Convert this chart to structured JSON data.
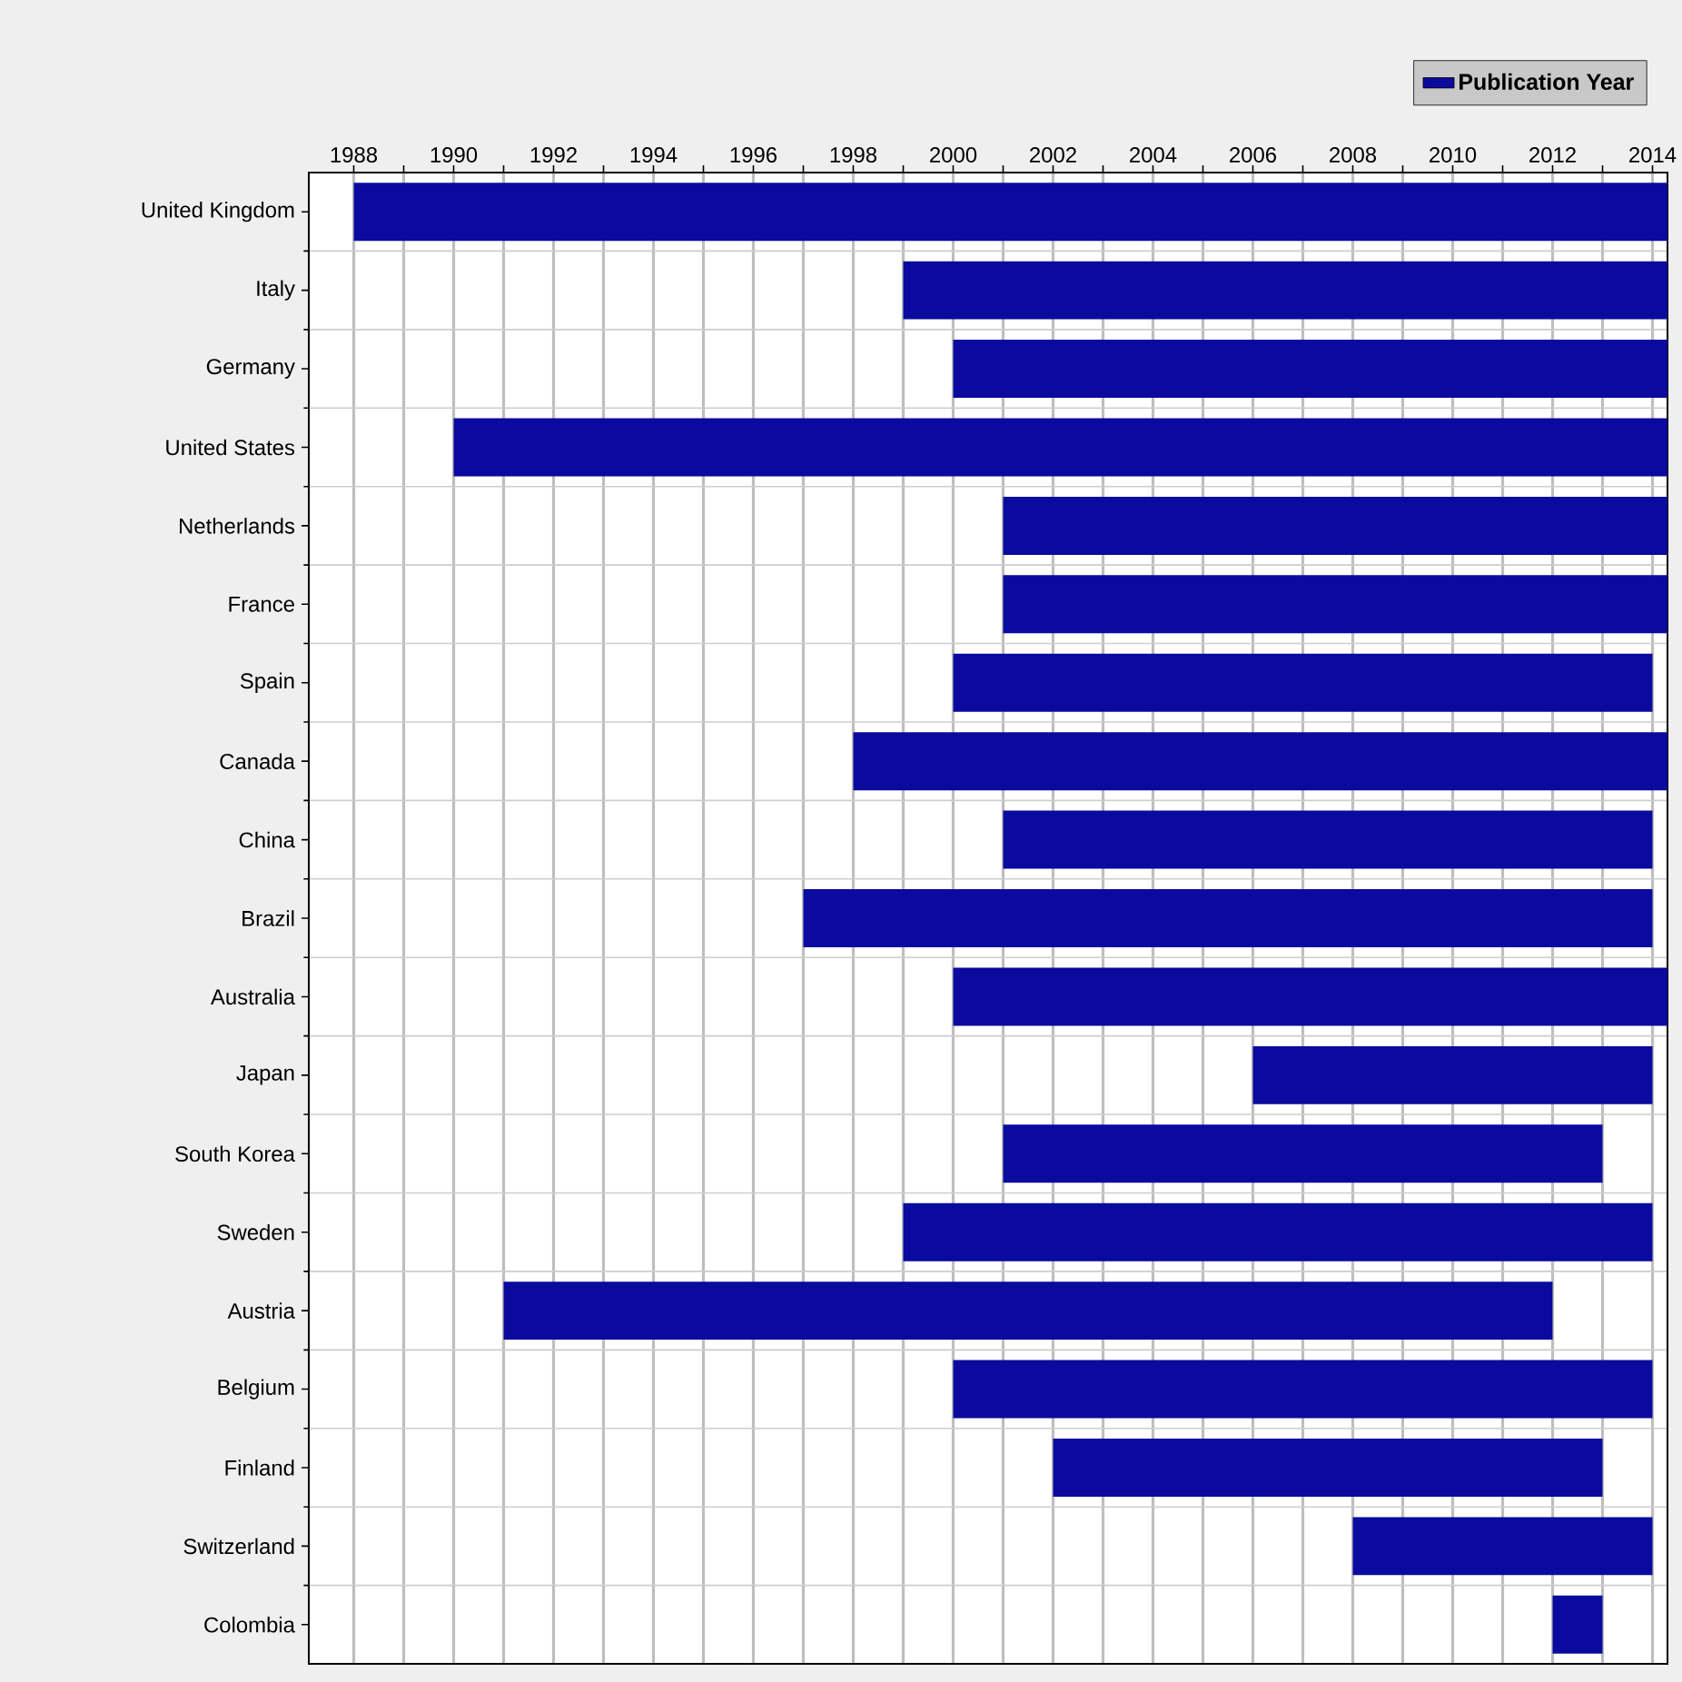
{
  "chart_data": {
    "type": "bar",
    "orientation": "horizontal",
    "categories": [
      "United Kingdom",
      "Italy",
      "Germany",
      "United States",
      "Netherlands",
      "France",
      "Spain",
      "Canada",
      "China",
      "Brazil",
      "Australia",
      "Japan",
      "South Korea",
      "Sweden",
      "Austria",
      "Belgium",
      "Finland",
      "Switzerland",
      "Colombia"
    ],
    "series": [
      {
        "name": "Publication Year",
        "color": "#0a0a9e",
        "base": [
          1988,
          1999,
          2000,
          1990,
          2001,
          2001,
          2000,
          1998,
          2001,
          1997,
          2000,
          2006,
          2001,
          1999,
          1991,
          2000,
          2002,
          2008,
          2012
        ],
        "values": [
          26.3,
          15.3,
          14.3,
          24.3,
          13.3,
          13.3,
          14,
          16.3,
          13,
          17,
          14.3,
          8,
          12,
          15,
          21,
          14,
          11,
          6,
          1
        ]
      }
    ],
    "xlim": [
      1987.1,
      2014.3
    ],
    "xticks": [
      1988,
      {
        "value": 1989,
        "label": null
      },
      1990,
      {
        "value": 1991,
        "label": null
      },
      1992,
      {
        "value": 1993,
        "label": null
      },
      1994,
      {
        "value": 1995,
        "label": null
      },
      1996,
      {
        "value": 1997,
        "label": null
      },
      1998,
      {
        "value": 1999,
        "label": null
      },
      2000,
      {
        "value": 2001,
        "label": null
      },
      2002,
      {
        "value": 2003,
        "label": null
      },
      2004,
      {
        "value": 2005,
        "label": null
      },
      2006,
      {
        "value": 2007,
        "label": null
      },
      2008,
      {
        "value": 2009,
        "label": null
      },
      2010,
      {
        "value": 2011,
        "label": null
      },
      2012,
      {
        "value": 2013,
        "label": null
      },
      2014
    ],
    "grid": true,
    "legend": "top right"
  }
}
